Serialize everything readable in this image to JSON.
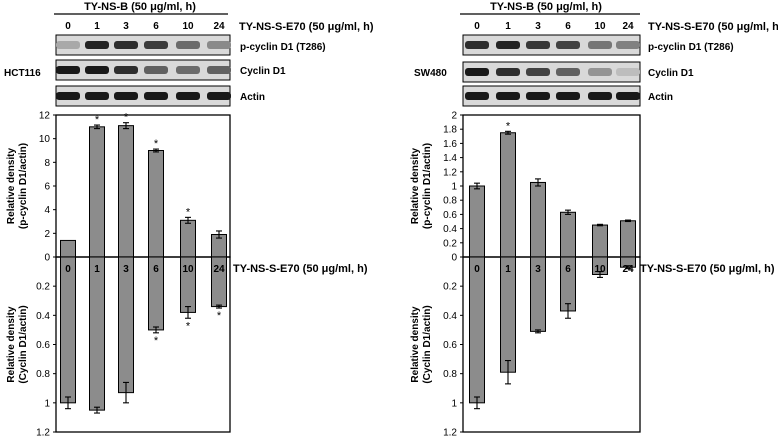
{
  "left": {
    "header": "TY-NS-B (50 μg/ml, h)",
    "xaxis_label": "TY-NS-S-E70 (50 μg/ml, h)",
    "cell_line": "HCT116",
    "blot_labels": [
      "p-cyclin D1 (T286)",
      "Cyclin D1",
      "Actin"
    ]
  },
  "right": {
    "header": "TY-NS-B (50 μg/ml, h)",
    "xaxis_label": "TY-NS-S-E70 (50 μg/ml, h)",
    "cell_line": "SW480",
    "blot_labels": [
      "p-cyclin D1 (T286)",
      "Cyclin D1",
      "Actin"
    ]
  },
  "chart_data": [
    {
      "type": "bar",
      "panel": "HCT116 top",
      "categories": [
        "0",
        "1",
        "3",
        "6",
        "10",
        "24"
      ],
      "values": [
        1.4,
        11.0,
        11.1,
        9.0,
        3.1,
        1.9
      ],
      "errors": [
        0,
        0.15,
        0.25,
        0.12,
        0.25,
        0.3
      ],
      "significant": [
        false,
        true,
        true,
        true,
        true,
        false
      ],
      "ylabel": [
        "Relative density",
        "(p-cyclin D1/actin)"
      ],
      "ylim": [
        0,
        12
      ],
      "yticks": [
        "0",
        "2",
        "4",
        "6",
        "8",
        "10",
        "12"
      ]
    },
    {
      "type": "bar",
      "panel": "HCT116 bottom",
      "categories": [
        "0",
        "1",
        "3",
        "6",
        "10",
        "24"
      ],
      "values": [
        1.0,
        1.05,
        0.93,
        0.5,
        0.38,
        0.34
      ],
      "errors": [
        0.04,
        0.02,
        0.07,
        0.02,
        0.04,
        0.01
      ],
      "significant": [
        false,
        false,
        false,
        true,
        true,
        true
      ],
      "ylabel": [
        "Relative density",
        "(Cyclin D1/actin)"
      ],
      "ylim": [
        0,
        1.2
      ],
      "inverted": true,
      "yticks": [
        "0.2",
        "0.4",
        "0.6",
        "0.8",
        "1",
        "1.2"
      ]
    },
    {
      "type": "bar",
      "panel": "SW480 top",
      "categories": [
        "0",
        "1",
        "3",
        "6",
        "10",
        "24"
      ],
      "values": [
        1.0,
        1.75,
        1.05,
        0.63,
        0.45,
        0.51
      ],
      "errors": [
        0.04,
        0.02,
        0.05,
        0.03,
        0.01,
        0.01
      ],
      "significant": [
        false,
        true,
        false,
        false,
        false,
        false
      ],
      "ylabel": [
        "Relative density",
        "(p-cyclin D1/actin)"
      ],
      "ylim": [
        0,
        2
      ],
      "yticks": [
        "0",
        "0.2",
        "0.4",
        "0.6",
        "0.8",
        "1",
        "1.2",
        "1.4",
        "1.6",
        "1.8",
        "2"
      ]
    },
    {
      "type": "bar",
      "panel": "SW480 bottom",
      "categories": [
        "0",
        "1",
        "3",
        "6",
        "10",
        "24"
      ],
      "values": [
        1.0,
        0.79,
        0.51,
        0.37,
        0.12,
        0.07
      ],
      "errors": [
        0.04,
        0.08,
        0.01,
        0.05,
        0.02,
        0.01
      ],
      "significant": [
        false,
        false,
        false,
        false,
        false,
        false
      ],
      "ylabel": [
        "Relative density",
        "(Cyclin D1/actin)"
      ],
      "ylim": [
        0,
        1.2
      ],
      "inverted": true,
      "yticks": [
        "0.2",
        "0.4",
        "0.6",
        "0.8",
        "1",
        "1.2"
      ]
    }
  ],
  "blots": {
    "left": {
      "p_cyclin": [
        0.25,
        0.9,
        0.85,
        0.78,
        0.55,
        0.4
      ],
      "cyclin": [
        0.95,
        0.95,
        0.85,
        0.6,
        0.55,
        0.6
      ],
      "actin": [
        0.95,
        0.95,
        0.95,
        0.95,
        0.95,
        0.95
      ]
    },
    "right": {
      "p_cyclin": [
        0.85,
        0.9,
        0.8,
        0.75,
        0.5,
        0.45
      ],
      "cyclin": [
        0.95,
        0.85,
        0.75,
        0.6,
        0.35,
        0.15
      ],
      "actin": [
        0.95,
        0.95,
        0.95,
        0.95,
        0.95,
        0.95
      ]
    }
  },
  "significance_mark": "*"
}
